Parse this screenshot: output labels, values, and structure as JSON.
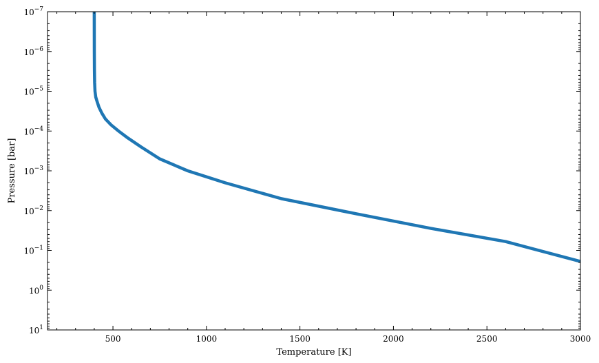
{
  "chart_data": {
    "type": "line",
    "title": "",
    "xlabel": "Temperature [K]",
    "ylabel": "Pressure [bar]",
    "xlim": [
      150,
      3000
    ],
    "ylim": [
      10,
      1e-07
    ],
    "yscale": "log",
    "y_inverted": true,
    "x_ticks": [
      500,
      1000,
      1500,
      2000,
      2500,
      3000
    ],
    "x_tick_labels": [
      "500",
      "1000",
      "1500",
      "2000",
      "2500",
      "3000"
    ],
    "y_tick_exponents": [
      -7,
      -6,
      -5,
      -4,
      -3,
      -2,
      -1,
      0,
      1
    ],
    "y_tick_labels": [
      {
        "base": "10",
        "exp": "−7"
      },
      {
        "base": "10",
        "exp": "−6"
      },
      {
        "base": "10",
        "exp": "−5"
      },
      {
        "base": "10",
        "exp": "−4"
      },
      {
        "base": "10",
        "exp": "−3"
      },
      {
        "base": "10",
        "exp": "−2"
      },
      {
        "base": "10",
        "exp": "−1"
      },
      {
        "base": "10",
        "exp": "0"
      },
      {
        "base": "10",
        "exp": "1"
      }
    ],
    "series": [
      {
        "color": "#1f77b4",
        "x": [
          400,
          400.4,
          401,
          402,
          404,
          408,
          415,
          425,
          440,
          460,
          490,
          530,
          580,
          650,
          750,
          900,
          1100,
          1400,
          1800,
          2200,
          2600,
          3000
        ],
        "y": [
          1e-07,
          1e-06,
          3e-06,
          6e-06,
          1e-05,
          1.4e-05,
          1.8e-05,
          2.5e-05,
          3.5e-05,
          5e-05,
          7e-05,
          0.0001,
          0.00015,
          0.00025,
          0.0005,
          0.001,
          0.002,
          0.005,
          0.012,
          0.028,
          0.06,
          0.19
        ]
      }
    ],
    "grid": false,
    "ticks_direction": "in",
    "ticks_on_all_sides": true
  }
}
